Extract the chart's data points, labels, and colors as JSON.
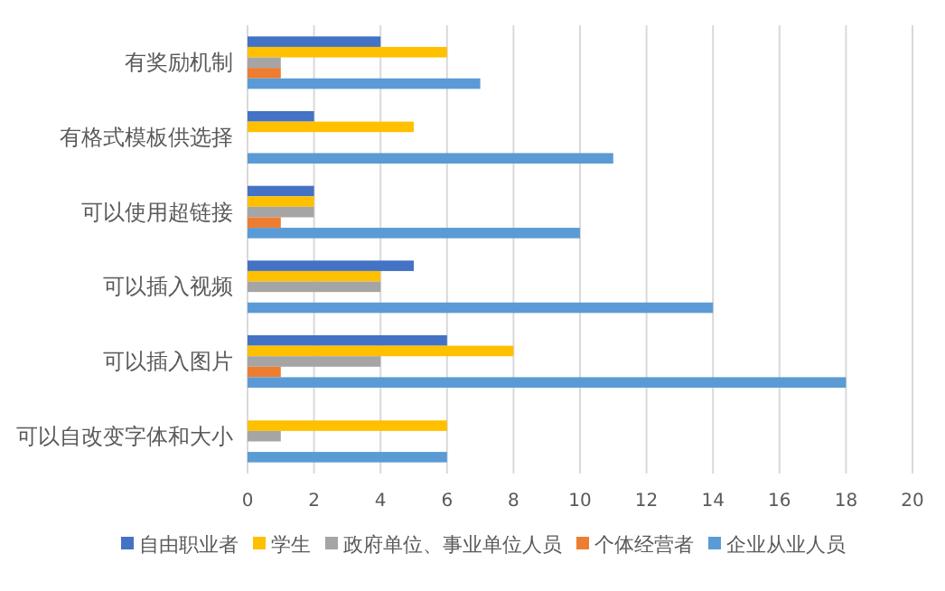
{
  "chart_data": {
    "type": "bar",
    "orientation": "horizontal",
    "categories": [
      "有奖励机制",
      "有格式模板供选择",
      "可以使用超链接",
      "可以插入视频",
      "可以插入图片",
      "可以自改变字体和大小"
    ],
    "series": [
      {
        "name": "自由职业者",
        "color": "#4472c4",
        "values": [
          4,
          2,
          2,
          5,
          6,
          0
        ]
      },
      {
        "name": "学生",
        "color": "#ffc000",
        "values": [
          6,
          5,
          2,
          4,
          8,
          6
        ]
      },
      {
        "name": "政府单位、事业单位人员",
        "color": "#a5a5a5",
        "values": [
          1,
          0,
          2,
          4,
          4,
          1
        ]
      },
      {
        "name": "个体经营者",
        "color": "#ed7d31",
        "values": [
          1,
          0,
          1,
          0,
          1,
          0
        ]
      },
      {
        "name": "企业从业人员",
        "color": "#5b9bd5",
        "values": [
          7,
          11,
          10,
          14,
          18,
          6
        ]
      }
    ],
    "xlim": [
      0,
      20
    ],
    "xticks": [
      0,
      2,
      4,
      6,
      8,
      10,
      12,
      14,
      16,
      18,
      20
    ],
    "grid": "x",
    "legend": "bottom"
  }
}
